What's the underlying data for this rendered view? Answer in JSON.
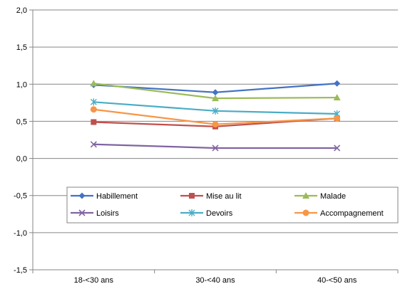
{
  "chart_data": {
    "type": "line",
    "categories": [
      "18-<30 ans",
      "30-<40 ans",
      "40-<50 ans"
    ],
    "ylim": [
      -1.5,
      2.0
    ],
    "yticks": [
      "2,0",
      "1,5",
      "1,0",
      "0,5",
      "0,0",
      "-0,5",
      "-1,0",
      "-1,5"
    ],
    "grid": "horizontal",
    "legend_position": "inside-bottom",
    "series": [
      {
        "name": "Habillement",
        "color": "#4472C4",
        "marker": "diamond",
        "values": [
          0.99,
          0.89,
          1.01
        ]
      },
      {
        "name": "Mise au lit",
        "color": "#C0504D",
        "marker": "square",
        "values": [
          0.49,
          0.43,
          0.54
        ]
      },
      {
        "name": "Malade",
        "color": "#9BBB59",
        "marker": "triangle",
        "values": [
          1.01,
          0.81,
          0.82
        ]
      },
      {
        "name": "Loisirs",
        "color": "#8064A2",
        "marker": "x",
        "values": [
          0.19,
          0.14,
          0.14
        ]
      },
      {
        "name": "Devoirs",
        "color": "#4BACC6",
        "marker": "asterisk",
        "values": [
          0.76,
          0.64,
          0.6
        ]
      },
      {
        "name": "Accompagnement",
        "color": "#F79646",
        "marker": "circle",
        "values": [
          0.66,
          0.46,
          0.54
        ]
      }
    ]
  }
}
